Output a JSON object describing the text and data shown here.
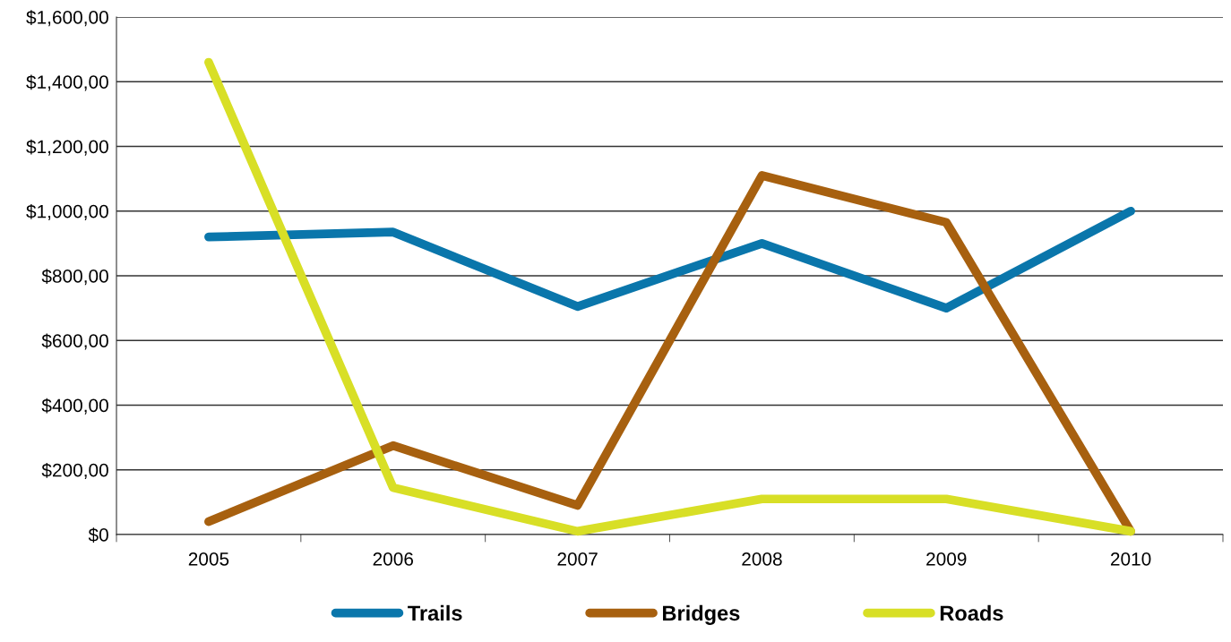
{
  "chart_data": {
    "type": "line",
    "categories": [
      "2005",
      "2006",
      "2007",
      "2008",
      "2009",
      "2010"
    ],
    "series": [
      {
        "name": "Trails",
        "color": "#0a76ab",
        "values": [
          920,
          935,
          705,
          900,
          700,
          1000
        ]
      },
      {
        "name": "Bridges",
        "color": "#a7600f",
        "values": [
          40,
          275,
          90,
          1110,
          965,
          10
        ]
      },
      {
        "name": "Roads",
        "color": "#d8df26",
        "values": [
          1460,
          145,
          10,
          110,
          110,
          10
        ]
      }
    ],
    "ylim": [
      0,
      1600
    ],
    "yticks": [
      {
        "value": 0,
        "label": "$0"
      },
      {
        "value": 200,
        "label": "$200,00"
      },
      {
        "value": 400,
        "label": "$400,00"
      },
      {
        "value": 600,
        "label": "$600,00"
      },
      {
        "value": 800,
        "label": "$800,00"
      },
      {
        "value": 1000,
        "label": "$1,000,00"
      },
      {
        "value": 1200,
        "label": "$1,200,00"
      },
      {
        "value": 1400,
        "label": "$1,400,00"
      },
      {
        "value": 1600,
        "label": "$1,600,00"
      }
    ],
    "grid": "y",
    "legend": "bottom",
    "marker": "none",
    "line_style": "solid"
  }
}
